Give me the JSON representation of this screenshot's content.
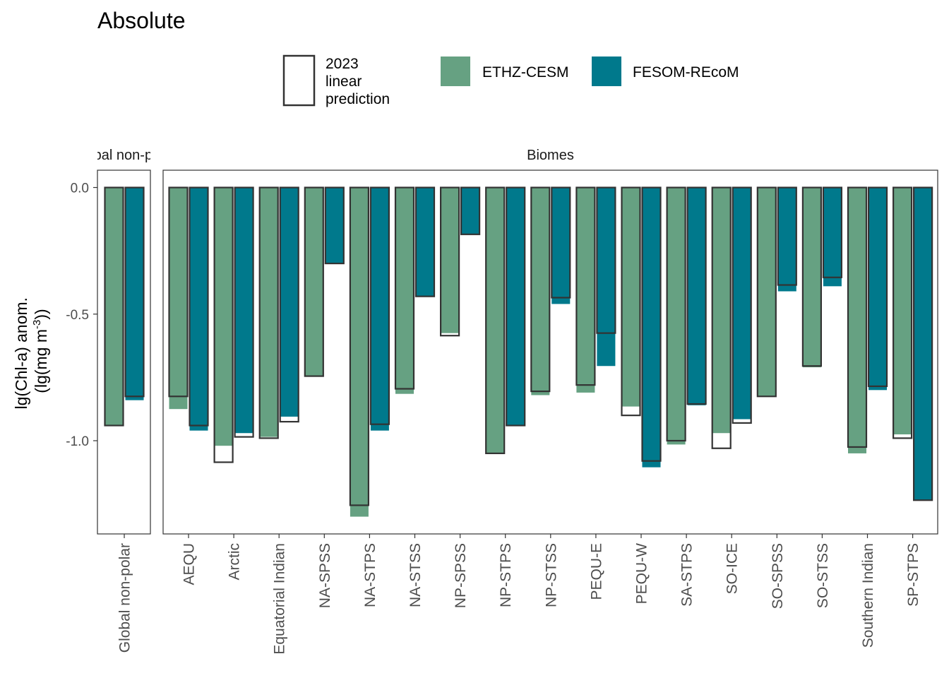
{
  "chart_data": {
    "type": "bar",
    "title": "Absolute",
    "ylabel_line1": "lg(Chl-a) anom.",
    "ylabel_line2_prefix": "(lg(mg m",
    "ylabel_line2_sup": "-3",
    "ylabel_line2_suffix": "))",
    "ylim": [
      -1.35,
      0.05
    ],
    "yticks": [
      0.0,
      -0.5,
      -1.0
    ],
    "ytick_labels": [
      "0.0",
      "-0.5",
      "-1.0"
    ],
    "legend": {
      "outline_label": [
        "2023",
        "linear",
        "prediction"
      ],
      "series_names": [
        "ETHZ-CESM",
        "FESOM-REcoM"
      ]
    },
    "colors": {
      "ETHZ-CESM": "#66a182",
      "FESOM-REcoM": "#00798c",
      "outline": "#333333"
    },
    "panels": [
      {
        "strip": "Global non-polar",
        "categories": [
          "Global non-polar"
        ],
        "series": [
          {
            "name": "ETHZ-CESM",
            "values": [
              -0.94
            ],
            "prediction": [
              -0.94
            ]
          },
          {
            "name": "FESOM-REcoM",
            "values": [
              -0.84
            ],
            "prediction": [
              -0.825
            ]
          }
        ]
      },
      {
        "strip": "Biomes",
        "categories": [
          "AEQU",
          "Arctic",
          "Equatorial Indian",
          "NA-SPSS",
          "NA-STPS",
          "NA-STSS",
          "NP-SPSS",
          "NP-STPS",
          "NP-STSS",
          "PEQU-E",
          "PEQU-W",
          "SA-STPS",
          "SO-ICE",
          "SO-SPSS",
          "SO-STSS",
          "Southern Indian",
          "SP-STPS"
        ],
        "series": [
          {
            "name": "ETHZ-CESM",
            "values": [
              -0.875,
              -1.02,
              -0.985,
              -0.745,
              -1.3,
              -0.815,
              -0.575,
              -1.05,
              -0.82,
              -0.81,
              -0.865,
              -1.015,
              -0.97,
              -0.825,
              -0.71,
              -1.05,
              -0.975
            ],
            "prediction": [
              -0.825,
              -1.085,
              -0.99,
              -0.745,
              -1.255,
              -0.795,
              -0.585,
              -1.05,
              -0.805,
              -0.78,
              -0.9,
              -1.0,
              -1.03,
              -0.825,
              -0.705,
              -1.025,
              -0.99
            ]
          },
          {
            "name": "FESOM-REcoM",
            "values": [
              -0.96,
              -0.97,
              -0.905,
              -0.3,
              -0.96,
              -0.43,
              -0.185,
              -0.94,
              -0.46,
              -0.705,
              -1.105,
              -0.86,
              -0.915,
              -0.41,
              -0.39,
              -0.8,
              -1.235
            ],
            "prediction": [
              -0.94,
              -0.985,
              -0.925,
              -0.3,
              -0.935,
              -0.43,
              -0.185,
              -0.94,
              -0.435,
              -0.575,
              -1.08,
              -0.855,
              -0.93,
              -0.385,
              -0.355,
              -0.785,
              -1.235
            ]
          }
        ]
      }
    ]
  }
}
